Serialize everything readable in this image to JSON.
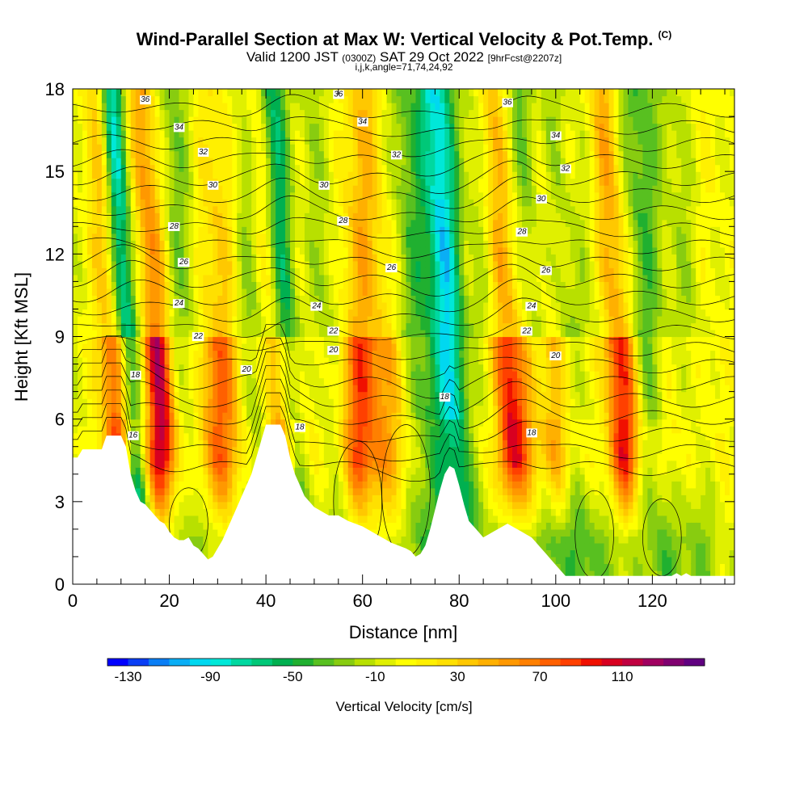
{
  "title": "Wind-Parallel Section at Max W: Vertical Velocity & Pot.Temp.",
  "title_mark": "(C)",
  "subtitle_main_a": "Valid 1200 JST",
  "subtitle_small_a": "(0300Z)",
  "subtitle_main_b": "SAT 29 Oct 2022",
  "subtitle_small_b": "[9hrFcst@2207z]",
  "subtitle2": "i,j,k,angle=71,74,24,92",
  "chart_data": {
    "type": "heatmap",
    "title": "Wind-Parallel Section at Max W: Vertical Velocity & Pot.Temp.",
    "xlabel": "Distance [nm]",
    "ylabel": "Height [Kft MSL]",
    "xlim": [
      0,
      137
    ],
    "ylim": [
      0,
      18
    ],
    "xticks": [
      0,
      20,
      40,
      60,
      80,
      100,
      120
    ],
    "yticks": [
      0,
      3,
      6,
      9,
      12,
      15,
      18
    ],
    "colorbar": {
      "label": "Vertical Velocity [cm/s]",
      "tick_labels": [
        "-130",
        "-90",
        "-50",
        "-10",
        "30",
        "70",
        "110"
      ],
      "range": [
        -140,
        150
      ],
      "colors": [
        "#0000ff",
        "#0a3ef5",
        "#0a7ef5",
        "#0aaef5",
        "#00d8f0",
        "#00e8d8",
        "#00d8a0",
        "#00c878",
        "#00b050",
        "#20b030",
        "#58c020",
        "#88cc10",
        "#b8e000",
        "#e0f000",
        "#ffff00",
        "#fff000",
        "#ffe000",
        "#ffc800",
        "#ffb000",
        "#ff9800",
        "#ff8000",
        "#ff6000",
        "#ff4000",
        "#f01000",
        "#d80020",
        "#c00040",
        "#a00060",
        "#800070",
        "#600080"
      ]
    },
    "terrain_profile": [
      [
        0,
        4.6
      ],
      [
        1,
        4.6
      ],
      [
        2,
        4.9
      ],
      [
        6,
        4.9
      ],
      [
        7,
        5.4
      ],
      [
        10,
        5.4
      ],
      [
        11,
        5.0
      ],
      [
        12,
        4.0
      ],
      [
        13,
        3.4
      ],
      [
        14,
        3.0
      ],
      [
        15,
        2.9
      ],
      [
        16,
        2.7
      ],
      [
        17,
        2.5
      ],
      [
        18,
        2.3
      ],
      [
        19,
        2.2
      ],
      [
        20,
        1.9
      ],
      [
        21,
        1.7
      ],
      [
        22,
        1.6
      ],
      [
        23,
        1.6
      ],
      [
        24,
        1.7
      ],
      [
        25,
        1.4
      ],
      [
        26,
        1.3
      ],
      [
        27,
        1.1
      ],
      [
        28,
        0.9
      ],
      [
        29,
        1.0
      ],
      [
        30,
        1.3
      ],
      [
        31,
        1.6
      ],
      [
        32,
        2.0
      ],
      [
        33,
        2.4
      ],
      [
        34,
        2.8
      ],
      [
        35,
        3.2
      ],
      [
        36,
        3.6
      ],
      [
        37,
        4.0
      ],
      [
        38,
        4.6
      ],
      [
        39,
        5.2
      ],
      [
        40,
        5.8
      ],
      [
        43,
        5.8
      ],
      [
        44,
        5.4
      ],
      [
        45,
        4.6
      ],
      [
        46,
        4.0
      ],
      [
        47,
        3.6
      ],
      [
        48,
        3.2
      ],
      [
        49,
        3.0
      ],
      [
        50,
        2.8
      ],
      [
        51,
        2.7
      ],
      [
        52,
        2.6
      ],
      [
        53,
        2.5
      ],
      [
        55,
        2.5
      ],
      [
        57,
        2.3
      ],
      [
        60,
        2.1
      ],
      [
        63,
        1.8
      ],
      [
        66,
        1.5
      ],
      [
        69,
        1.3
      ],
      [
        70,
        1.2
      ],
      [
        71,
        1.0
      ],
      [
        72,
        1.1
      ],
      [
        73,
        1.4
      ],
      [
        74,
        2.0
      ],
      [
        75,
        2.7
      ],
      [
        76,
        3.4
      ],
      [
        77,
        4.0
      ],
      [
        78,
        4.3
      ],
      [
        79,
        4.2
      ],
      [
        80,
        3.6
      ],
      [
        81,
        2.9
      ],
      [
        82,
        2.3
      ],
      [
        83,
        2.1
      ],
      [
        84,
        1.9
      ],
      [
        85,
        1.7
      ],
      [
        86,
        1.8
      ],
      [
        87,
        1.9
      ],
      [
        88,
        2.0
      ],
      [
        89,
        2.1
      ],
      [
        90,
        2.2
      ],
      [
        91,
        2.1
      ],
      [
        92,
        2.0
      ],
      [
        93,
        1.9
      ],
      [
        94,
        1.8
      ],
      [
        95,
        1.7
      ],
      [
        96,
        1.5
      ],
      [
        97,
        1.3
      ],
      [
        98,
        1.1
      ],
      [
        99,
        0.9
      ],
      [
        100,
        0.7
      ],
      [
        101,
        0.5
      ],
      [
        102,
        0.3
      ],
      [
        124,
        0.3
      ],
      [
        125,
        0.4
      ],
      [
        126,
        0.3
      ],
      [
        127,
        0.4
      ],
      [
        128,
        0.3
      ],
      [
        137,
        0.3
      ]
    ],
    "updrafts": [
      [
        10,
        110,
        2.5
      ],
      [
        18.5,
        120,
        2.2
      ],
      [
        29,
        55,
        3
      ],
      [
        33,
        40,
        3
      ],
      [
        43,
        90,
        2.2
      ],
      [
        48,
        30,
        3
      ],
      [
        59,
        75,
        3
      ],
      [
        64,
        35,
        3
      ],
      [
        69,
        30,
        3
      ],
      [
        83,
        20,
        3
      ],
      [
        90.5,
        110,
        2.2
      ],
      [
        95,
        40,
        3
      ],
      [
        100,
        60,
        3
      ],
      [
        106,
        25,
        3
      ],
      [
        114,
        105,
        2.6
      ],
      [
        124,
        35,
        3
      ],
      [
        131,
        20,
        3
      ]
    ],
    "downdrafts": [
      [
        12,
        -110,
        1.8
      ],
      [
        24,
        -25,
        3
      ],
      [
        38,
        -35,
        3
      ],
      [
        45,
        -80,
        2
      ],
      [
        53,
        -25,
        3
      ],
      [
        72,
        -50,
        3
      ],
      [
        79,
        -90,
        2.5
      ],
      [
        88,
        -30,
        3
      ],
      [
        97,
        -40,
        2
      ],
      [
        103,
        -45,
        2.5
      ],
      [
        109,
        -25,
        3
      ],
      [
        120,
        -40,
        3
      ],
      [
        128,
        -30,
        3
      ]
    ],
    "isentrope_labels": [
      {
        "text": "36",
        "x": 15,
        "y": 17.6
      },
      {
        "text": "34",
        "x": 22,
        "y": 16.6
      },
      {
        "text": "32",
        "x": 27,
        "y": 15.7
      },
      {
        "text": "30",
        "x": 29,
        "y": 14.5
      },
      {
        "text": "28",
        "x": 21,
        "y": 13.0
      },
      {
        "text": "26",
        "x": 23,
        "y": 11.7
      },
      {
        "text": "24",
        "x": 22,
        "y": 10.2
      },
      {
        "text": "22",
        "x": 26,
        "y": 9.0
      },
      {
        "text": "18",
        "x": 13,
        "y": 7.6
      },
      {
        "text": "16",
        "x": 12.5,
        "y": 5.4
      },
      {
        "text": "20",
        "x": 36,
        "y": 7.8
      },
      {
        "text": "36",
        "x": 55,
        "y": 17.8
      },
      {
        "text": "34",
        "x": 60,
        "y": 16.8
      },
      {
        "text": "32",
        "x": 67,
        "y": 15.6
      },
      {
        "text": "30",
        "x": 52,
        "y": 14.5
      },
      {
        "text": "28",
        "x": 56,
        "y": 13.2
      },
      {
        "text": "26",
        "x": 66,
        "y": 11.5
      },
      {
        "text": "24",
        "x": 50.5,
        "y": 10.1
      },
      {
        "text": "22",
        "x": 54,
        "y": 9.2
      },
      {
        "text": "20",
        "x": 54,
        "y": 8.5
      },
      {
        "text": "18",
        "x": 47,
        "y": 5.7
      },
      {
        "text": "18",
        "x": 77,
        "y": 6.8
      },
      {
        "text": "36",
        "x": 90,
        "y": 17.5
      },
      {
        "text": "34",
        "x": 100,
        "y": 16.3
      },
      {
        "text": "32",
        "x": 102,
        "y": 15.1
      },
      {
        "text": "30",
        "x": 97,
        "y": 14.0
      },
      {
        "text": "28",
        "x": 93,
        "y": 12.8
      },
      {
        "text": "26",
        "x": 98,
        "y": 11.4
      },
      {
        "text": "24",
        "x": 95,
        "y": 10.1
      },
      {
        "text": "22",
        "x": 94,
        "y": 9.2
      },
      {
        "text": "20",
        "x": 100,
        "y": 8.3
      },
      {
        "text": "18",
        "x": 95,
        "y": 5.5
      }
    ]
  }
}
